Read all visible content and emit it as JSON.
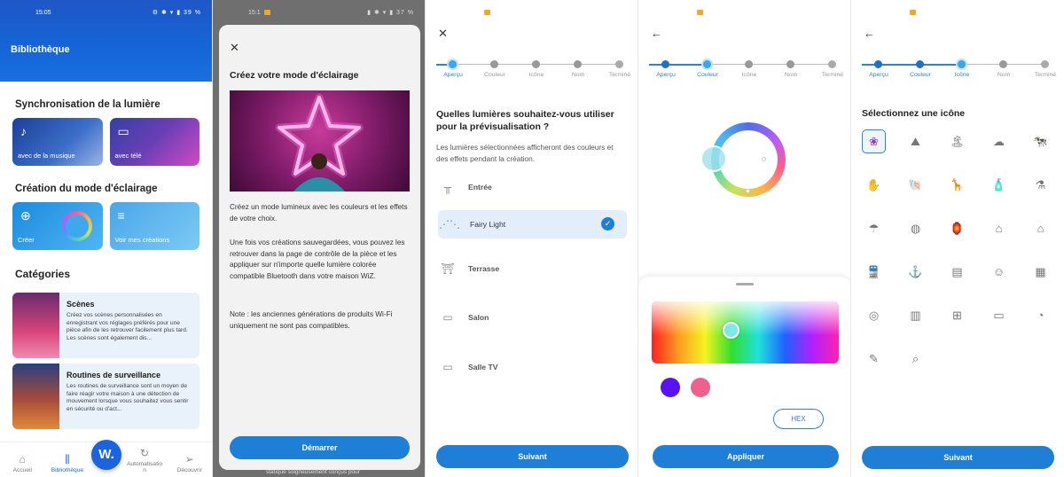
{
  "screen1": {
    "status_time": "15:05",
    "status_right": "⚙ ✱ ▾ ▮ 39 %",
    "title": "Bibliothèque",
    "sync_section": "Synchronisation de la lumière",
    "music_label": "avec de la musique",
    "tv_label": "avec télé",
    "creation_section": "Création du mode d'éclairage",
    "create_label": "Créer",
    "my_creations_label": "Voir mes créations",
    "categories_section": "Catégories",
    "categories": [
      {
        "title": "Scènes",
        "desc": "Créez vos scènes personnalisées en enregistrant vos réglages préférés pour une pièce afin de les retrouver facilement plus tard. Les scènes sont également dis..."
      },
      {
        "title": "Routines de surveillance",
        "desc": "Les routines de surveillance sont un moyen de faire réagir votre maison à une détection de mouvement lorsque vous souhaitez vous sentir en sécurité ou d'act..."
      }
    ],
    "nav": {
      "home": "Accueil",
      "library": "Bibliothèque",
      "wiz": "W.",
      "automation": "Automatisatio n",
      "discover": "Découvrir"
    }
  },
  "screen2": {
    "status_time": "15:1",
    "status_right": "▮ ✱ ▾ ▮ 37 %",
    "title": "Créez votre mode d'éclairage",
    "para1": "Créez un mode lumineux avec les couleurs et les effets de votre choix.",
    "para2": "Une fois vos créations sauvegardées, vous pouvez les retrouver dans la page de contrôle de la pièce et les appliquer sur n'importe quelle lumière colorée compatible Bluetooth dans votre maison WiZ.",
    "para3": "Note : les anciennes générations de produits Wi-Fi uniquement ne sont pas compatibles.",
    "start_button": "Démarrer",
    "behind_text": "statique soigneusement conçus pour"
  },
  "steps": [
    "Aperçu",
    "Couleur",
    "Icône",
    "Nom",
    "Terminé"
  ],
  "screen3": {
    "question": "Quelles lumières souhaitez-vous utiliser pour la prévisualisation ?",
    "desc": "Les lumières sélectionnées afficheront des couleurs et des effets pendant la création.",
    "rooms": [
      {
        "name": "Entrée",
        "selected": false
      },
      {
        "name": "Fairy Light",
        "selected": true
      },
      {
        "name": "Terrasse",
        "selected": false
      },
      {
        "name": "Salon",
        "selected": false
      },
      {
        "name": "Salle TV",
        "selected": false
      }
    ],
    "next_button": "Suivant"
  },
  "screen4": {
    "swatch_colors": [
      "#5a12f0",
      "#f0608f"
    ],
    "hex_button": "HEX",
    "apply_button": "Appliquer"
  },
  "screen5": {
    "title": "Sélectionnez une icône",
    "icons": [
      "palette-icon",
      "mountains-icon",
      "island-icon",
      "rain-icon",
      "cow-icon",
      "hand-icon",
      "shell-icon",
      "giraffe-icon",
      "bottle-icon",
      "lab-icon",
      "hand-drop-icon",
      "globe-icon",
      "lantern-icon",
      "sign-icon",
      "house-icon",
      "train-icon",
      "diver-icon",
      "door-icon",
      "ghost-icon",
      "fireplace-icon",
      "balloon-icon",
      "pool-icon",
      "field-icon",
      "tv-icon",
      "candy-icon",
      "brush-icon",
      "search-icon"
    ],
    "icon_glyphs": [
      "❀",
      "⛰",
      "🏝",
      "☁",
      "🐄",
      "✋",
      "🐚",
      "🦒",
      "🧴",
      "⚗",
      "☂",
      "◍",
      "🏮",
      "⌂",
      "⌂",
      "🚆",
      "⚓",
      "▤",
      "☺",
      "▦",
      "◎",
      "▥",
      "⊞",
      "▭",
      "◔",
      "✎",
      "⌕"
    ],
    "next_button": "Suivant"
  }
}
